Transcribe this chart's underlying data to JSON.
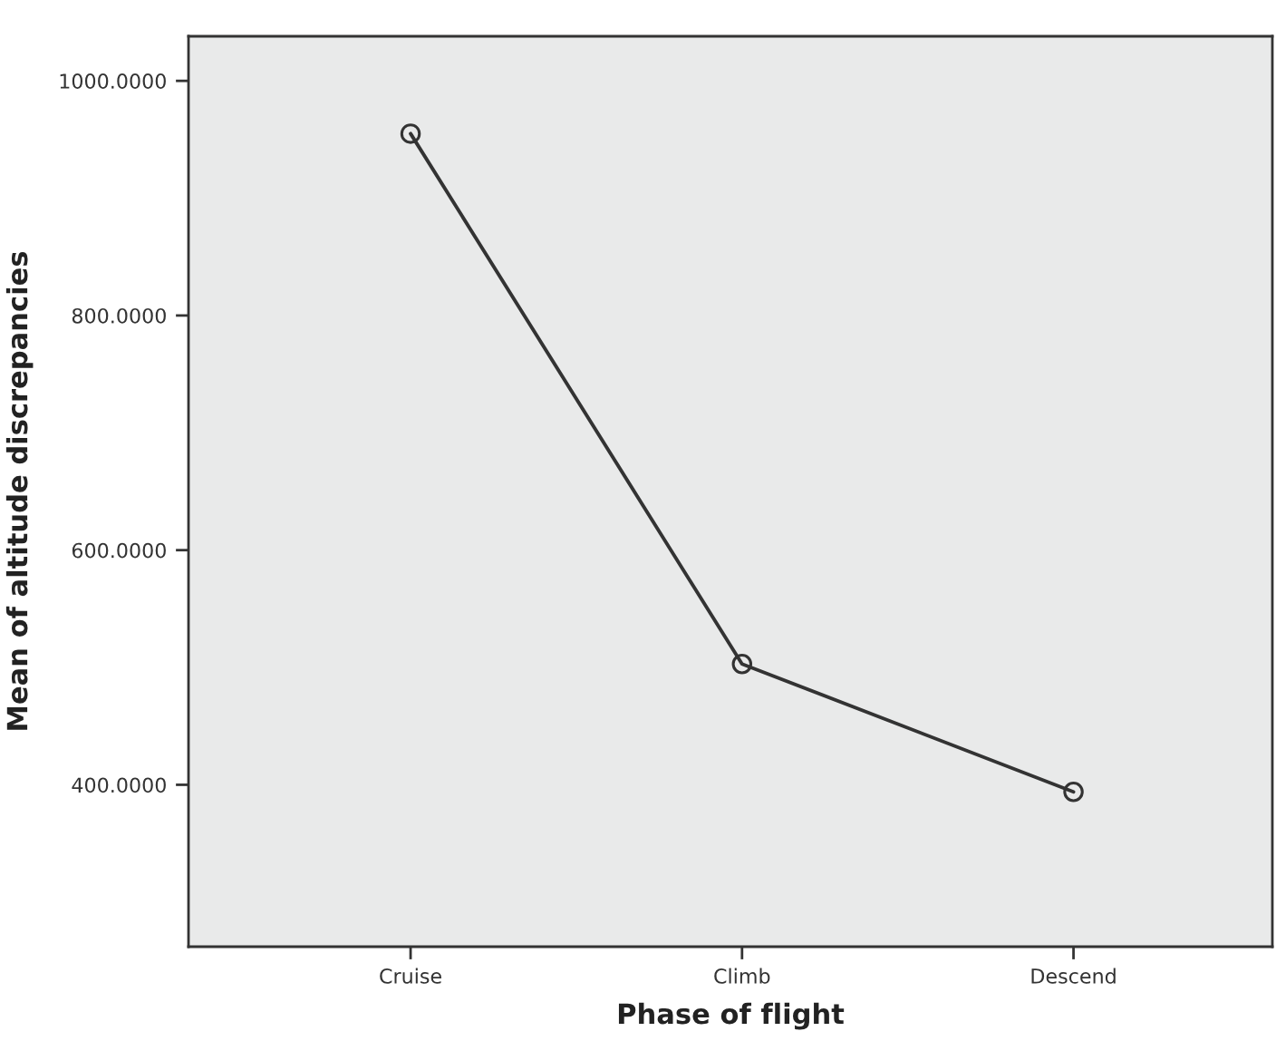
{
  "chart_data": {
    "type": "line",
    "xlabel": "Phase of flight",
    "ylabel": "Mean of altitude discrepancies",
    "categories": [
      "Cruise",
      "Climb",
      "Descend"
    ],
    "series": [
      {
        "color": "#333333",
        "values": [
          955,
          503,
          394
        ]
      }
    ],
    "marker": "circle",
    "line_style": "solid",
    "grid": false,
    "ylim": [
      262,
      1038
    ],
    "yticks": [
      {
        "value": 400,
        "label": "400.0000"
      },
      {
        "value": 600,
        "label": "600.0000"
      },
      {
        "value": 800,
        "label": "800.0000"
      },
      {
        "value": 1000,
        "label": "1000.0000"
      }
    ]
  }
}
